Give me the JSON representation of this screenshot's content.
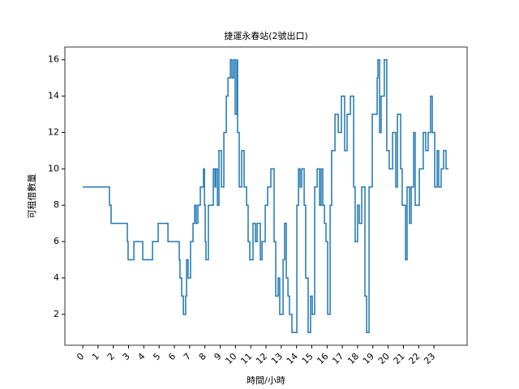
{
  "chart_data": {
    "type": "line",
    "drawstyle": "steps-post",
    "title": "捷運永春站(2號出口)",
    "x_label": "時間/小時",
    "y_label": "可租借數量",
    "color": "#1f77b4",
    "x": [
      0,
      1.75,
      1.86,
      2.92,
      2.97,
      3.35,
      3.93,
      4.57,
      4.94,
      5.58,
      6.32,
      6.37,
      6.48,
      6.59,
      6.69,
      6.74,
      6.8,
      6.9,
      7.06,
      7.22,
      7.33,
      7.43,
      7.54,
      7.7,
      7.91,
      7.97,
      8.02,
      8.07,
      8.23,
      8.55,
      8.66,
      8.71,
      8.82,
      8.92,
      9.08,
      9.24,
      9.4,
      9.51,
      9.67,
      9.77,
      9.88,
      9.98,
      10.09,
      10.14,
      10.25,
      10.41,
      10.57,
      10.73,
      10.83,
      10.94,
      11.15,
      11.31,
      11.42,
      11.63,
      11.74,
      11.95,
      12.11,
      12.32,
      12.53,
      12.64,
      12.8,
      12.9,
      13.12,
      13.22,
      13.33,
      13.44,
      13.54,
      13.7,
      14.02,
      14.13,
      14.23,
      14.34,
      14.5,
      14.6,
      14.76,
      14.92,
      15.03,
      15.19,
      15.35,
      15.51,
      15.61,
      15.72,
      15.83,
      15.93,
      16.04,
      16.2,
      16.3,
      16.52,
      16.73,
      16.94,
      17.15,
      17.31,
      17.53,
      17.74,
      17.84,
      18.0,
      18.11,
      18.27,
      18.48,
      18.59,
      18.75,
      18.96,
      19.28,
      19.33,
      19.44,
      19.54,
      19.75,
      19.91,
      20.07,
      20.29,
      20.5,
      20.61,
      20.82,
      20.92,
      21.14,
      21.24,
      21.4,
      21.51,
      21.67,
      21.77,
      22.04,
      22.3,
      22.46,
      22.62,
      22.78,
      22.89,
      23.05,
      23.21,
      23.31,
      23.47,
      23.63,
      23.79,
      23.95
    ],
    "values": [
      9,
      8,
      7,
      6,
      5,
      6,
      5,
      6,
      7,
      6,
      5,
      4,
      3,
      2,
      2,
      3,
      5,
      4,
      6,
      7,
      8,
      7,
      8,
      9,
      10,
      8,
      6,
      5,
      8,
      10,
      9,
      10,
      8,
      11,
      9,
      12,
      14,
      15,
      16,
      15,
      16,
      13,
      16,
      12,
      9,
      11,
      9,
      8,
      6,
      5,
      7,
      6,
      7,
      5,
      6,
      8,
      9,
      10,
      6,
      3,
      4,
      2,
      5,
      7,
      4,
      3,
      2,
      1,
      8,
      10,
      9,
      10,
      8,
      4,
      1,
      3,
      2,
      9,
      10,
      8,
      10,
      8,
      7,
      6,
      2,
      8,
      11,
      13,
      12,
      14,
      11,
      13,
      14,
      9,
      6,
      8,
      7,
      9,
      3,
      1,
      9,
      13,
      15,
      16,
      12,
      14,
      16,
      11,
      10,
      12,
      9,
      13,
      10,
      8,
      5,
      9,
      7,
      9,
      12,
      8,
      10,
      12,
      11,
      12,
      14,
      12,
      9,
      11,
      9,
      10,
      11,
      10,
      10
    ],
    "xlim": [
      -1.17,
      25.17
    ],
    "ylim": [
      0.3,
      16.7
    ],
    "xticks": [
      0,
      1,
      2,
      3,
      4,
      5,
      6,
      7,
      8,
      9,
      10,
      11,
      12,
      13,
      14,
      15,
      16,
      17,
      18,
      19,
      20,
      21,
      22,
      23
    ],
    "yticks": [
      2,
      4,
      6,
      8,
      10,
      12,
      14,
      16
    ]
  }
}
